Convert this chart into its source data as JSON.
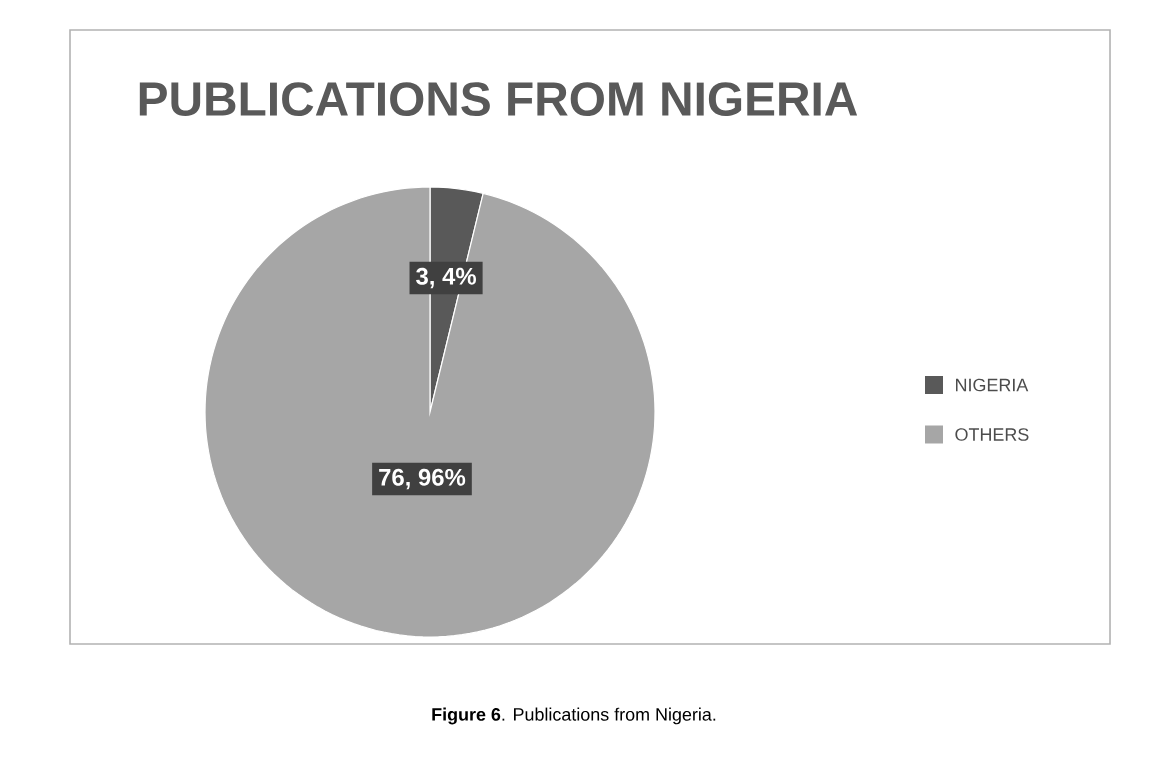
{
  "chart_data": {
    "type": "pie",
    "title": "PUBLICATIONS FROM NIGERIA",
    "categories": [
      "NIGERIA",
      "OTHERS"
    ],
    "values": [
      3,
      76
    ],
    "value_labels": [
      "3, 4%",
      "76, 96%"
    ],
    "colors": [
      "#595959",
      "#a6a6a6"
    ],
    "legend": "right",
    "annotations": [
      "**Figure 6**. Publications from Nigeria."
    ]
  }
}
